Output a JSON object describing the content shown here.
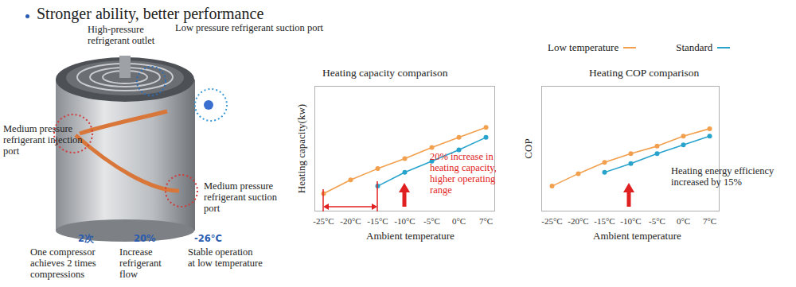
{
  "header": {
    "title": "Stronger ability, better performance"
  },
  "compressor": {
    "labels": [
      [
        "High-pressure",
        "refrigerant outlet"
      ],
      [
        "Low pressure refrigerant suction port"
      ],
      [
        "Medium pressure",
        "refrigerant injection",
        " port"
      ],
      [
        "Medium pressure",
        "refrigerant suction",
        "port"
      ]
    ],
    "stats": [
      {
        "value": "2次",
        "text": [
          "One compressor",
          "achieves 2 times",
          "compressions"
        ]
      },
      {
        "value": "20%",
        "text": [
          "Increase",
          "refrigerant",
          "flow"
        ]
      },
      {
        "value": "-26°C",
        "text": [
          "Stable operation",
          "at low temperature"
        ]
      }
    ]
  },
  "chart_data": [
    {
      "type": "line",
      "title": "Heating capacity comparison",
      "x_label": "Ambient temperature",
      "y_label": "Heating capacity(kw)",
      "categories": [
        "-25°C",
        "-20°C",
        "-15°C",
        "-10°C",
        "-5°C",
        "0°C",
        "7°C"
      ],
      "series": [
        {
          "name": "Low temperature",
          "color": "#f2a04e",
          "marker": "circle",
          "values": [
            14,
            25,
            34,
            42,
            51,
            59,
            67
          ]
        },
        {
          "name": "Standard",
          "color": "#27a3cc",
          "marker": "circle",
          "values": [
            null,
            null,
            20,
            31,
            40,
            49,
            59
          ]
        }
      ],
      "ylim": [
        0,
        100
      ],
      "yticks": [],
      "tick_labels": "x",
      "annotations": [
        [
          "20% increase in",
          "heating capacity,",
          "higher operating",
          " range"
        ]
      ]
    },
    {
      "type": "line",
      "title": "Heating COP comparison",
      "x_label": "Ambient temperature",
      "y_label": "COP",
      "categories": [
        "-25°C",
        "-20°C",
        "-15°C",
        "-10°C",
        "-5°C",
        "0°C",
        "7°C"
      ],
      "series": [
        {
          "name": "Low temperature",
          "color": "#f2a04e",
          "marker": "circle",
          "values": [
            20,
            30,
            39,
            46,
            52,
            60,
            66
          ]
        },
        {
          "name": "Standard",
          "color": "#27a3cc",
          "marker": "circle",
          "values": [
            null,
            null,
            31,
            38,
            46,
            53,
            60
          ]
        }
      ],
      "ylim": [
        0,
        100
      ],
      "yticks": [],
      "tick_labels": "x",
      "legend": "top",
      "annotations": [
        [
          "Heating energy efficiency",
          "increased by 15%"
        ]
      ]
    }
  ]
}
